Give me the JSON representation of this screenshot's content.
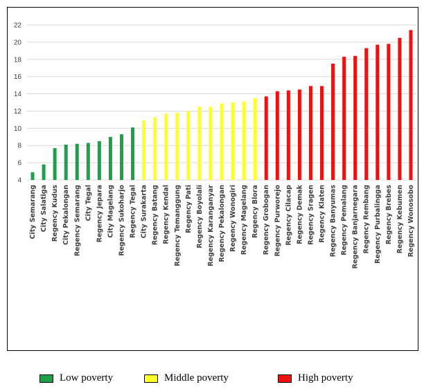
{
  "chart_data": {
    "type": "bar",
    "title": "",
    "xlabel": "",
    "ylabel": "",
    "ylim": [
      4,
      22
    ],
    "yticks": [
      4,
      6,
      8,
      10,
      12,
      14,
      16,
      18,
      20,
      22
    ],
    "grid": true,
    "legend_position": "bottom",
    "categories": [
      "City Semarang",
      "City Salatiga",
      "Regency Kudus",
      "City Pekalongan",
      "Regency Semarang",
      "City Tegal",
      "Regency Jepara",
      "City Magelang",
      "Regency Sukoharjo",
      "Regency Tegal",
      "City Surakarta",
      "Regency Batang",
      "Regency Kendal",
      "Regency Temanggung",
      "Regency Pati",
      "Regency Boyolali",
      "Regency Karanganyar",
      "Regency Pekalongan",
      "Regency Wonogiri",
      "Regency Magelang",
      "Regency Blora",
      "Regency Grobogan",
      "Regency Purworejo",
      "Regency Cilacap",
      "Regency Demak",
      "Regency Sragen",
      "Regency Klaten",
      "Regency Banyumas",
      "Regency Pemalang",
      "Regency Banjarnegara",
      "Regency Rembang",
      "Regency Purbalingga",
      "Regency Brebes",
      "Regency Kebumen",
      "Regency Wonosobo"
    ],
    "values": [
      4.9,
      5.8,
      7.7,
      8.1,
      8.2,
      8.3,
      8.5,
      9.0,
      9.3,
      10.1,
      10.9,
      11.3,
      11.7,
      11.8,
      12.0,
      12.5,
      12.5,
      12.9,
      13.0,
      13.1,
      13.5,
      13.7,
      14.3,
      14.4,
      14.5,
      14.9,
      14.9,
      17.5,
      18.3,
      18.4,
      19.3,
      19.7,
      19.8,
      20.5,
      21.4
    ],
    "groups": [
      "low",
      "low",
      "low",
      "low",
      "low",
      "low",
      "low",
      "low",
      "low",
      "low",
      "middle",
      "middle",
      "middle",
      "middle",
      "middle",
      "middle",
      "middle",
      "middle",
      "middle",
      "middle",
      "middle",
      "high",
      "high",
      "high",
      "high",
      "high",
      "high",
      "high",
      "high",
      "high",
      "high",
      "high",
      "high",
      "high",
      "high"
    ],
    "colors": {
      "low": "#1ea04b",
      "middle": "#ffff2a",
      "high": "#ee1111"
    },
    "legend": [
      {
        "key": "low",
        "label": "Low poverty"
      },
      {
        "key": "middle",
        "label": "Middle poverty"
      },
      {
        "key": "high",
        "label": "High poverty"
      }
    ]
  }
}
